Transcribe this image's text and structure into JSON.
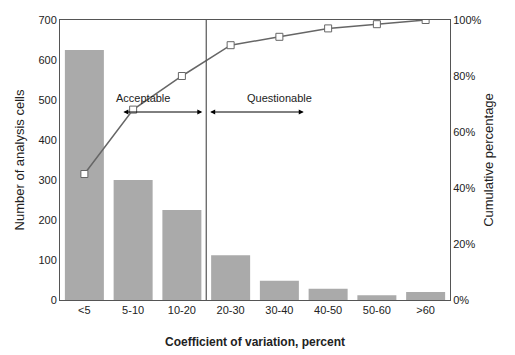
{
  "chart_data": {
    "type": "bar",
    "categories": [
      "<5",
      "5-10",
      "10-20",
      "20-30",
      "30-40",
      "40-50",
      "50-60",
      ">60"
    ],
    "series": [
      {
        "type": "bar",
        "color": "#aaaaaa",
        "values": [
          625,
          300,
          225,
          112,
          48,
          28,
          12,
          20
        ]
      },
      {
        "type": "line",
        "axis": "y2",
        "color": "#666666",
        "marker": "square",
        "values": [
          45,
          68,
          80,
          91,
          94,
          97,
          98.5,
          100
        ]
      }
    ],
    "xlabel": "Coefficient of variation, percent",
    "ylabel": "Number of analysis cells",
    "y2label": "Cumulative percentage",
    "ylim": [
      0,
      700
    ],
    "yticks": [
      0,
      100,
      200,
      300,
      400,
      500,
      600,
      700
    ],
    "y2lim": [
      0,
      100
    ],
    "y2ticks": [
      {
        "value": 0,
        "label": "0%"
      },
      {
        "value": 20,
        "label": "20%"
      },
      {
        "value": 40,
        "label": "40%"
      },
      {
        "value": 60,
        "label": "60%"
      },
      {
        "value": 80,
        "label": "80%"
      },
      {
        "value": 100,
        "label": "100%"
      }
    ],
    "divider": {
      "x": 2.5,
      "arrow_y": 470,
      "left_text": "Acceptable",
      "right_text": "Questionable"
    },
    "grid": false
  }
}
